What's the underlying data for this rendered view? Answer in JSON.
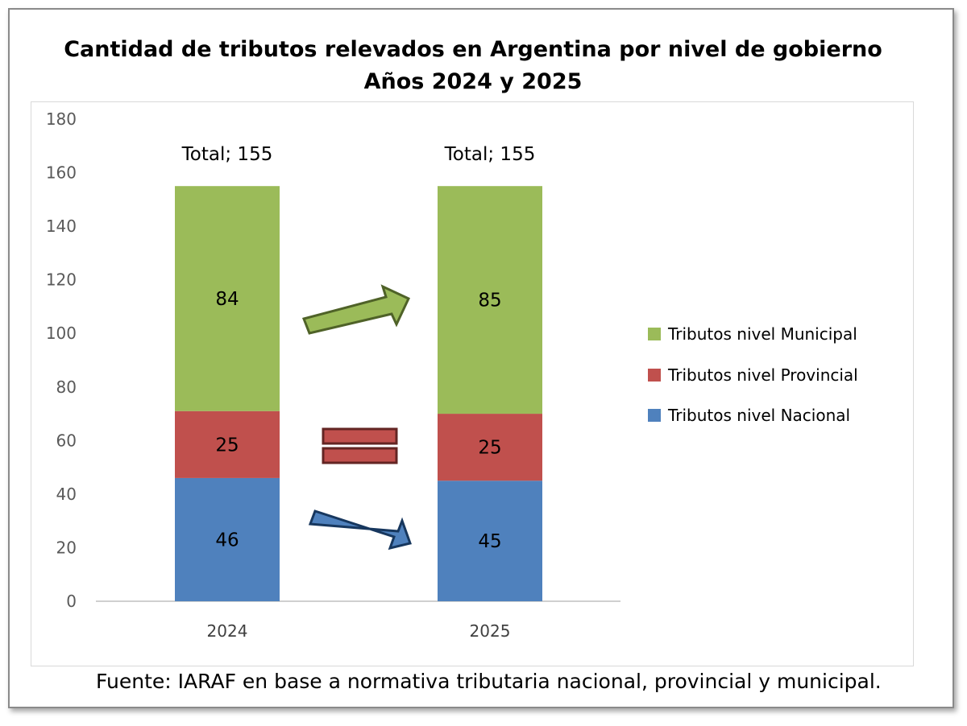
{
  "title_line1": "Cantidad de tributos relevados en Argentina por nivel de gobierno",
  "title_line2": "Años 2024 y 2025",
  "source": "Fuente: IARAF en base a normativa tributaria nacional, provincial y municipal.",
  "colors": {
    "nacional": "#4f81bd",
    "provincial": "#c0504d",
    "municipal": "#9bbb59",
    "arrow_green_stroke": "#4f6228",
    "arrow_blue_stroke": "#17375e",
    "equals_stroke": "#632523"
  },
  "chart_data": {
    "type": "bar",
    "stacked": true,
    "categories": [
      "2024",
      "2025"
    ],
    "ylim": [
      0,
      180
    ],
    "yticks": [
      "0",
      "20",
      "40",
      "60",
      "80",
      "100",
      "120",
      "140",
      "160",
      "180"
    ],
    "series": [
      {
        "name": "Tributos nivel Nacional",
        "values": [
          46,
          45
        ]
      },
      {
        "name": "Tributos nivel Provincial",
        "values": [
          25,
          25
        ]
      },
      {
        "name": "Tributos nivel Municipal",
        "values": [
          84,
          85
        ]
      }
    ],
    "totals": [
      "Total; 155",
      "Total; 155"
    ],
    "totals_values": [
      155,
      155
    ],
    "legend_order": [
      "Tributos nivel Municipal",
      "Tributos nivel Provincial",
      "Tributos nivel Nacional"
    ],
    "legend_position": "right",
    "grid": false,
    "annotations": [
      "up-arrow (municipal)",
      "equals sign (provincial)",
      "down-arrow (nacional)"
    ]
  }
}
